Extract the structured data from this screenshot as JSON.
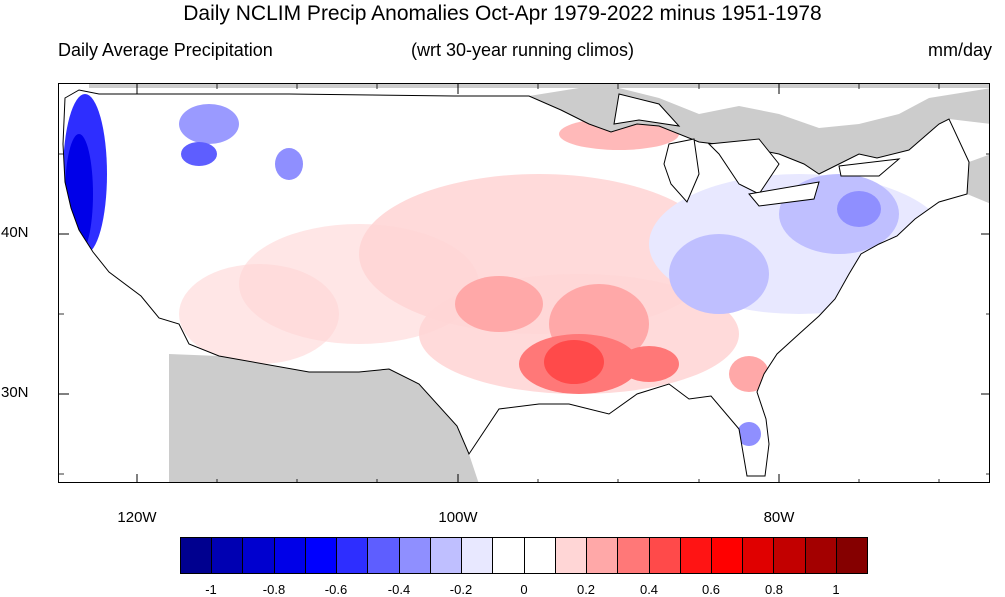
{
  "title": "Daily NCLIM Precip Anomalies Oct-Apr 1979-2022 minus 1951-1978",
  "subtitle_left": "Daily Average Precipitation",
  "subtitle_center": "(wrt 30-year running climos)",
  "subtitle_right": "mm/day",
  "chart_data": {
    "type": "heatmap",
    "projection": "lat-lon",
    "x_axis": {
      "ticks": [
        "120W",
        "100W",
        "80W"
      ],
      "range": [
        -124.7,
        -67.0
      ]
    },
    "y_axis": {
      "ticks": [
        "30N",
        "40N"
      ],
      "range": [
        24.5,
        49.5
      ]
    },
    "colorbar": {
      "levels": [
        "-1",
        "-0.8",
        "-0.6",
        "-0.4",
        "-0.2",
        "0",
        "0.2",
        "0.4",
        "0.6",
        "0.8",
        "1"
      ],
      "colors": [
        "#00008f",
        "#0000b2",
        "#0000cf",
        "#0000e8",
        "#0000ff",
        "#2e2eff",
        "#5e5eff",
        "#8f8fff",
        "#bfbfff",
        "#e8e8ff",
        "#ffffff",
        "#ffffff",
        "#ffd6d6",
        "#ffa8a8",
        "#ff7878",
        "#ff4a4a",
        "#ff1414",
        "#ff0000",
        "#e00000",
        "#c20000",
        "#a30000",
        "#850000"
      ]
    },
    "missing_color": "#cccccc"
  }
}
